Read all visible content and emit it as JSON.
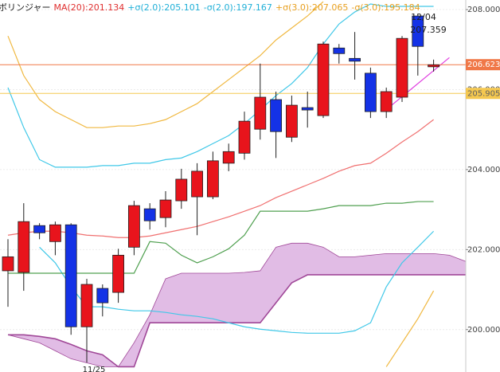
{
  "chart_data": {
    "type": "candlestick",
    "legend_items": [
      {
        "text": "ボリンジャー",
        "color": "#202020"
      },
      {
        "text": "MA(20):201.134",
        "color": "#e03030"
      },
      {
        "text": "+σ(2.0):205.101",
        "color": "#20b0d8"
      },
      {
        "text": "-σ(2.0):197.167",
        "color": "#20b0d8"
      },
      {
        "text": "+σ(3.0):207.065",
        "color": "#e8a020"
      },
      {
        "text": "-σ(3.0):195.184",
        "color": "#e8a020"
      }
    ],
    "annotations": [
      "12/04",
      "207.359"
    ],
    "categories": [
      null,
      null,
      null,
      null,
      null,
      "11/25",
      null,
      null,
      null,
      null,
      null,
      null,
      null,
      null,
      null,
      null,
      null,
      null,
      null,
      null,
      null,
      null,
      null,
      null,
      null,
      null,
      null,
      null,
      null,
      null,
      null,
      null
    ],
    "open": [
      201.47,
      201.43,
      202.6,
      202.2,
      202.62,
      200.07,
      201.03,
      200.93,
      202.06,
      203.02,
      202.8,
      203.22,
      203.32,
      203.32,
      204.16,
      204.41,
      205.01,
      205.75,
      204.81,
      205.55,
      205.35,
      207.04,
      206.78,
      206.41,
      205.45,
      205.81,
      207.84,
      206.57,
      null,
      null,
      null,
      null
    ],
    "high": [
      202.26,
      203.16,
      202.66,
      202.7,
      202.66,
      201.27,
      201.13,
      202.02,
      203.22,
      203.16,
      203.46,
      204.02,
      204.16,
      204.45,
      204.65,
      205.45,
      206.65,
      205.95,
      205.85,
      205.95,
      207.2,
      207.14,
      207.44,
      206.55,
      206.05,
      207.34,
      207.88,
      206.75,
      null,
      null,
      null,
      null
    ],
    "low": [
      200.57,
      200.97,
      202.26,
      201.86,
      199.87,
      199.18,
      200.33,
      200.67,
      201.86,
      202.5,
      202.56,
      203.02,
      202.36,
      203.26,
      203.96,
      204.25,
      204.75,
      204.29,
      204.69,
      205.05,
      205.29,
      206.65,
      206.25,
      205.29,
      205.29,
      205.69,
      206.35,
      206.45,
      null,
      null,
      null,
      null
    ],
    "close": [
      201.82,
      202.7,
      202.42,
      202.62,
      200.07,
      201.13,
      200.67,
      201.86,
      203.1,
      202.72,
      203.24,
      203.76,
      203.96,
      204.22,
      204.45,
      205.21,
      205.81,
      204.95,
      205.61,
      205.49,
      207.14,
      206.9,
      206.71,
      205.45,
      205.95,
      207.28,
      207.08,
      206.62,
      null,
      null,
      null,
      null
    ],
    "up_color": "#e8141c",
    "down_color": "#1432e6",
    "series": [
      {
        "color": "#f07070",
        "values": [
          202.36,
          202.42,
          202.46,
          202.46,
          202.42,
          202.36,
          202.34,
          202.3,
          202.3,
          202.34,
          202.42,
          202.5,
          202.58,
          202.7,
          202.82,
          202.96,
          203.1,
          203.3,
          203.46,
          203.62,
          203.78,
          203.96,
          204.1,
          204.16,
          204.41,
          204.69,
          204.95,
          205.25,
          null,
          null,
          null,
          null
        ]
      },
      {
        "color": "#40c8e8",
        "values": [
          206.05,
          205.05,
          204.25,
          204.06,
          204.06,
          204.06,
          204.1,
          204.1,
          204.16,
          204.16,
          204.25,
          204.29,
          204.45,
          204.65,
          204.85,
          205.15,
          205.49,
          205.85,
          206.15,
          206.55,
          207.14,
          207.64,
          207.94,
          208.14,
          208.08,
          208.08,
          208.08,
          208.08,
          null,
          null,
          null,
          null
        ]
      },
      {
        "color": "#40c8e8",
        "values": [
          null,
          null,
          202.06,
          201.67,
          201.07,
          200.57,
          200.57,
          200.51,
          200.47,
          200.47,
          200.43,
          200.37,
          200.33,
          200.27,
          200.17,
          200.07,
          200.01,
          199.97,
          199.93,
          199.91,
          199.91,
          199.91,
          199.97,
          200.17,
          201.07,
          201.67,
          202.06,
          202.46,
          null,
          null,
          null,
          null
        ]
      },
      {
        "color": "#f0b840",
        "values": [
          207.34,
          206.35,
          205.75,
          205.45,
          205.25,
          205.05,
          205.05,
          205.09,
          205.09,
          205.15,
          205.25,
          205.45,
          205.65,
          205.95,
          206.25,
          206.55,
          206.85,
          207.24,
          207.54,
          207.84,
          208.2,
          null,
          null,
          null,
          null,
          null,
          null,
          null,
          null,
          null,
          null,
          null
        ]
      },
      {
        "color": "#f0b840",
        "values": [
          null,
          null,
          null,
          null,
          null,
          null,
          null,
          null,
          null,
          null,
          null,
          null,
          null,
          null,
          null,
          null,
          null,
          null,
          null,
          null,
          null,
          null,
          null,
          null,
          199.07,
          199.67,
          200.27,
          200.97,
          null,
          null,
          null,
          null
        ]
      },
      {
        "color": "#50a050",
        "values": [
          201.41,
          201.41,
          201.41,
          201.41,
          201.41,
          201.41,
          201.41,
          201.41,
          201.41,
          202.2,
          202.16,
          201.86,
          201.67,
          201.82,
          202.02,
          202.36,
          202.96,
          202.96,
          202.96,
          202.96,
          203.02,
          203.1,
          203.1,
          203.1,
          203.16,
          203.16,
          203.2,
          203.2,
          null,
          null,
          null,
          null
        ]
      },
      {
        "color": "#e040e0",
        "values": [
          null,
          null,
          null,
          null,
          null,
          null,
          null,
          null,
          null,
          null,
          null,
          null,
          null,
          null,
          null,
          null,
          null,
          null,
          null,
          null,
          null,
          null,
          null,
          null,
          205.5,
          null,
          null,
          null,
          206.8,
          null,
          null,
          null
        ]
      }
    ],
    "cloud": {
      "fill": "#dcb0e0",
      "edge": "#a04898",
      "span_a": [
        199.87,
        199.77,
        199.67,
        199.47,
        199.27,
        199.17,
        199.07,
        199.07,
        199.67,
        200.37,
        201.27,
        201.41,
        201.41,
        201.41,
        201.41,
        201.43,
        201.47,
        202.06,
        202.16,
        202.16,
        202.06,
        201.82,
        201.82,
        201.86,
        201.9,
        201.9,
        201.9,
        201.9,
        201.86,
        201.71,
        201.53,
        201.47
      ],
      "span_b": [
        199.87,
        199.87,
        199.83,
        199.77,
        199.63,
        199.47,
        199.37,
        199.07,
        199.07,
        200.17,
        200.17,
        200.17,
        200.17,
        200.17,
        200.17,
        200.17,
        200.17,
        200.67,
        201.17,
        201.37,
        201.37,
        201.37,
        201.37,
        201.37,
        201.37,
        201.37,
        201.37,
        201.37,
        201.37,
        201.37,
        201.37,
        201.37
      ]
    },
    "price_lines": [
      {
        "value": 206.623,
        "color": "#f07848",
        "text_color": "#ffffff"
      },
      {
        "value": 205.905,
        "color": "#f5c850",
        "text_color": "#606060"
      }
    ],
    "ylim": [
      198.94,
      208.24
    ],
    "yticks": [
      {
        "value": 208,
        "label": "208.000"
      },
      {
        "value": 206,
        "label": "206.000"
      },
      {
        "value": 204,
        "label": "204.000"
      },
      {
        "value": 202,
        "label": "202.000"
      },
      {
        "value": 200,
        "label": "200.000"
      }
    ],
    "grid": true
  }
}
